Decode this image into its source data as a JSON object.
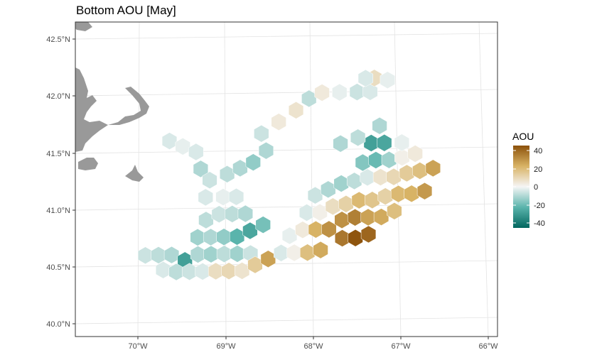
{
  "title": "Bottom AOU [May]",
  "chart_data": {
    "type": "heatmap",
    "title": "Bottom AOU [May]",
    "projection": "conic",
    "lon_ticks": [
      "70°W",
      "69°W",
      "68°W",
      "67°W",
      "66°W"
    ],
    "lat_ticks": [
      "42.5°N",
      "42.0°N",
      "41.5°N",
      "41.0°N",
      "40.5°N",
      "40.0°N"
    ],
    "xlim": [
      -70.75,
      -65.9
    ],
    "ylim": [
      39.9,
      42.6
    ],
    "grid": true,
    "colors": {
      "land": "#999999",
      "low": "#01665e",
      "mid": "#f5f5f5",
      "high": "#8c510a",
      "grid": "#e3e3e3",
      "border": "#333333"
    },
    "legend": {
      "title": "AOU",
      "placement": "right",
      "ticks": [
        40,
        20,
        0,
        -20,
        -40
      ],
      "range": [
        -45,
        45
      ]
    },
    "cells": [
      {
        "lon": -69.9,
        "lat": 40.6,
        "v": -6
      },
      {
        "lon": -69.75,
        "lat": 40.6,
        "v": -8
      },
      {
        "lon": -69.6,
        "lat": 40.6,
        "v": -10
      },
      {
        "lon": -69.45,
        "lat": 40.55,
        "v": -28
      },
      {
        "lon": -69.3,
        "lat": 40.6,
        "v": -10
      },
      {
        "lon": -69.15,
        "lat": 40.6,
        "v": -12
      },
      {
        "lon": -69.0,
        "lat": 40.6,
        "v": -8
      },
      {
        "lon": -68.85,
        "lat": 40.6,
        "v": -12
      },
      {
        "lon": -68.7,
        "lat": 40.6,
        "v": -6
      },
      {
        "lon": -69.7,
        "lat": 40.47,
        "v": -4
      },
      {
        "lon": -69.55,
        "lat": 40.45,
        "v": -8
      },
      {
        "lon": -69.4,
        "lat": 40.45,
        "v": -6
      },
      {
        "lon": -69.25,
        "lat": 40.45,
        "v": -4
      },
      {
        "lon": -69.1,
        "lat": 40.45,
        "v": 8
      },
      {
        "lon": -68.95,
        "lat": 40.45,
        "v": 10
      },
      {
        "lon": -68.8,
        "lat": 40.45,
        "v": 6
      },
      {
        "lon": -68.65,
        "lat": 40.5,
        "v": 14
      },
      {
        "lon": -68.5,
        "lat": 40.55,
        "v": 26
      },
      {
        "lon": -69.3,
        "lat": 40.75,
        "v": -12
      },
      {
        "lon": -69.15,
        "lat": 40.75,
        "v": -10
      },
      {
        "lon": -69.0,
        "lat": 40.75,
        "v": -14
      },
      {
        "lon": -68.85,
        "lat": 40.75,
        "v": -22
      },
      {
        "lon": -68.7,
        "lat": 40.8,
        "v": -26
      },
      {
        "lon": -68.55,
        "lat": 40.85,
        "v": -18
      },
      {
        "lon": -69.2,
        "lat": 40.9,
        "v": -8
      },
      {
        "lon": -69.05,
        "lat": 40.95,
        "v": -6
      },
      {
        "lon": -68.9,
        "lat": 40.95,
        "v": -8
      },
      {
        "lon": -68.75,
        "lat": 40.95,
        "v": -10
      },
      {
        "lon": -68.35,
        "lat": 40.6,
        "v": -4
      },
      {
        "lon": -68.2,
        "lat": 40.6,
        "v": 2
      },
      {
        "lon": -68.05,
        "lat": 40.6,
        "v": 18
      },
      {
        "lon": -67.9,
        "lat": 40.62,
        "v": 24
      },
      {
        "lon": -68.25,
        "lat": 40.75,
        "v": -2
      },
      {
        "lon": -68.1,
        "lat": 40.8,
        "v": 4
      },
      {
        "lon": -67.95,
        "lat": 40.8,
        "v": 22
      },
      {
        "lon": -67.8,
        "lat": 40.8,
        "v": 30
      },
      {
        "lon": -67.65,
        "lat": 40.72,
        "v": 36
      },
      {
        "lon": -67.5,
        "lat": 40.72,
        "v": 44
      },
      {
        "lon": -67.35,
        "lat": 40.75,
        "v": 40
      },
      {
        "lon": -67.65,
        "lat": 40.88,
        "v": 30
      },
      {
        "lon": -67.5,
        "lat": 40.9,
        "v": 34
      },
      {
        "lon": -67.35,
        "lat": 40.9,
        "v": 26
      },
      {
        "lon": -67.2,
        "lat": 40.9,
        "v": 24
      },
      {
        "lon": -67.05,
        "lat": 40.95,
        "v": 18
      },
      {
        "lon": -68.05,
        "lat": 40.95,
        "v": -4
      },
      {
        "lon": -67.9,
        "lat": 40.95,
        "v": 2
      },
      {
        "lon": -67.75,
        "lat": 41.0,
        "v": 8
      },
      {
        "lon": -67.6,
        "lat": 41.02,
        "v": 12
      },
      {
        "lon": -67.45,
        "lat": 41.05,
        "v": 20
      },
      {
        "lon": -67.3,
        "lat": 41.05,
        "v": 16
      },
      {
        "lon": -67.15,
        "lat": 41.08,
        "v": 12
      },
      {
        "lon": -67.0,
        "lat": 41.1,
        "v": 20
      },
      {
        "lon": -66.85,
        "lat": 41.1,
        "v": 22
      },
      {
        "lon": -66.7,
        "lat": 41.12,
        "v": 28
      },
      {
        "lon": -67.95,
        "lat": 41.1,
        "v": -6
      },
      {
        "lon": -67.8,
        "lat": 41.15,
        "v": -10
      },
      {
        "lon": -67.65,
        "lat": 41.2,
        "v": -12
      },
      {
        "lon": -67.5,
        "lat": 41.22,
        "v": -8
      },
      {
        "lon": -67.35,
        "lat": 41.25,
        "v": -4
      },
      {
        "lon": -67.2,
        "lat": 41.25,
        "v": 6
      },
      {
        "lon": -67.05,
        "lat": 41.25,
        "v": 10
      },
      {
        "lon": -66.9,
        "lat": 41.28,
        "v": 14
      },
      {
        "lon": -66.75,
        "lat": 41.3,
        "v": 18
      },
      {
        "lon": -66.6,
        "lat": 41.32,
        "v": 26
      },
      {
        "lon": -67.4,
        "lat": 41.38,
        "v": -16
      },
      {
        "lon": -67.25,
        "lat": 41.4,
        "v": -20
      },
      {
        "lon": -67.1,
        "lat": 41.4,
        "v": -12
      },
      {
        "lon": -66.95,
        "lat": 41.42,
        "v": 2
      },
      {
        "lon": -66.8,
        "lat": 41.45,
        "v": 4
      },
      {
        "lon": -67.3,
        "lat": 41.55,
        "v": -28
      },
      {
        "lon": -67.15,
        "lat": 41.55,
        "v": -26
      },
      {
        "lon": -66.95,
        "lat": 41.55,
        "v": -2
      },
      {
        "lon": -69.6,
        "lat": 41.6,
        "v": -4
      },
      {
        "lon": -69.45,
        "lat": 41.55,
        "v": -2
      },
      {
        "lon": -69.3,
        "lat": 41.5,
        "v": -4
      },
      {
        "lon": -69.25,
        "lat": 41.35,
        "v": -10
      },
      {
        "lon": -69.15,
        "lat": 41.25,
        "v": -6
      },
      {
        "lon": -69.2,
        "lat": 41.1,
        "v": -4
      },
      {
        "lon": -69.0,
        "lat": 41.1,
        "v": -2
      },
      {
        "lon": -68.85,
        "lat": 41.1,
        "v": -4
      },
      {
        "lon": -68.95,
        "lat": 41.3,
        "v": -8
      },
      {
        "lon": -68.8,
        "lat": 41.35,
        "v": -10
      },
      {
        "lon": -68.65,
        "lat": 41.4,
        "v": -14
      },
      {
        "lon": -68.5,
        "lat": 41.5,
        "v": -10
      },
      {
        "lon": -68.55,
        "lat": 41.65,
        "v": -6
      },
      {
        "lon": -68.35,
        "lat": 41.75,
        "v": 4
      },
      {
        "lon": -68.15,
        "lat": 41.85,
        "v": 6
      },
      {
        "lon": -68.0,
        "lat": 41.95,
        "v": -8
      },
      {
        "lon": -67.85,
        "lat": 42.0,
        "v": 4
      },
      {
        "lon": -67.65,
        "lat": 42.0,
        "v": -2
      },
      {
        "lon": -67.45,
        "lat": 42.0,
        "v": -6
      },
      {
        "lon": -67.3,
        "lat": 42.0,
        "v": -4
      },
      {
        "lon": -67.25,
        "lat": 42.12,
        "v": 8
      },
      {
        "lon": -67.1,
        "lat": 42.1,
        "v": -2
      },
      {
        "lon": -67.35,
        "lat": 42.12,
        "v": -4
      },
      {
        "lon": -67.65,
        "lat": 41.55,
        "v": -10
      },
      {
        "lon": -67.45,
        "lat": 41.6,
        "v": -8
      },
      {
        "lon": -67.2,
        "lat": 41.7,
        "v": -10
      }
    ]
  }
}
